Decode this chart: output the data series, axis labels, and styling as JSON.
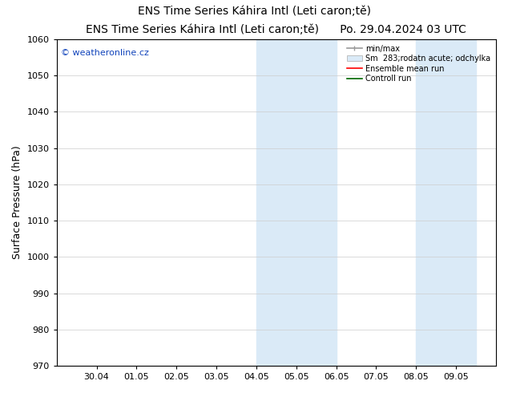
{
  "title_center": "ENS Time Series Káhira Intl (Leti caron;tě)      Po. 29.04.2024 03 UTC",
  "title_left": "ENS Time Series Káhira Intl (Leti caron;tě)",
  "title_right": "Po. 29.04.2024 03 UTC",
  "ylabel": "Surface Pressure (hPa)",
  "ylim": [
    970,
    1060
  ],
  "yticks": [
    970,
    980,
    990,
    1000,
    1010,
    1020,
    1030,
    1040,
    1050,
    1060
  ],
  "xtick_labels": [
    "30.04",
    "01.05",
    "02.05",
    "03.05",
    "04.05",
    "05.05",
    "06.05",
    "07.05",
    "08.05",
    "09.05"
  ],
  "shaded_color": "#daeaf7",
  "background_color": "#ffffff",
  "watermark_text": "© weatheronline.cz",
  "watermark_color": "#1144bb",
  "legend_minmax": "min/max",
  "legend_sm": "Sm  283;rodatn acute; odchylka",
  "legend_ensemble": "Ensemble mean run",
  "legend_control": "Controll run",
  "grid_color": "#cccccc",
  "title_fontsize": 10,
  "axis_fontsize": 9,
  "tick_fontsize": 8
}
